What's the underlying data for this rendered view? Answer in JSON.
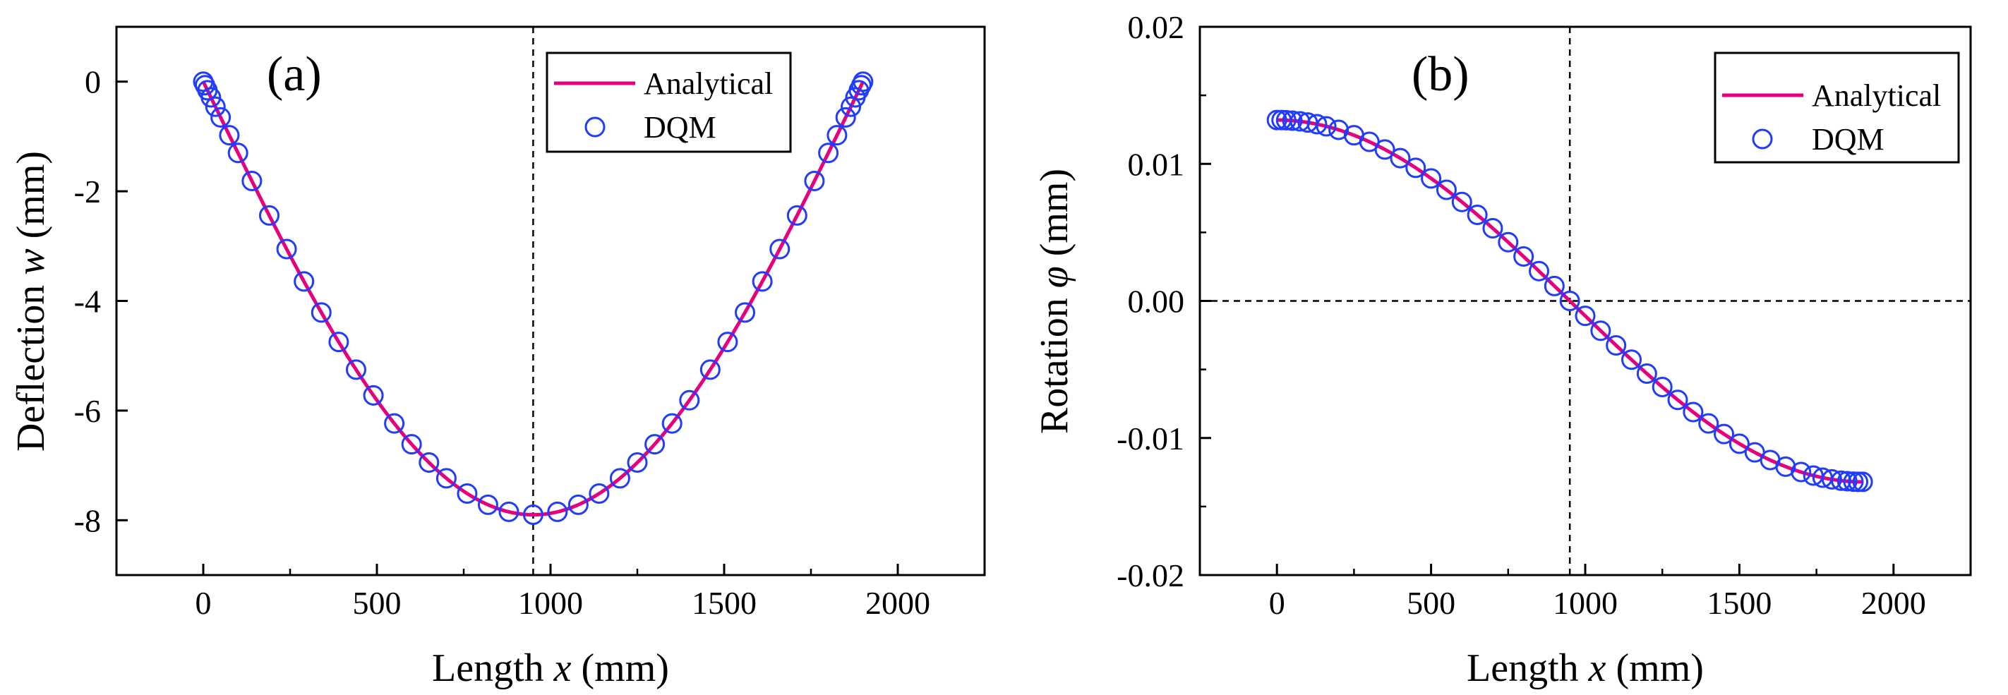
{
  "chart_data": [
    {
      "panel_label": "(a)",
      "type": "line+scatter",
      "xlabel_prefix": "Length ",
      "xlabel_var": "x",
      "xlabel_suffix": " (mm)",
      "ylabel_prefix": "Deflection ",
      "ylabel_var": "w",
      "ylabel_suffix": " (mm)",
      "xlim": [
        -250,
        2250
      ],
      "ylim": [
        -9,
        1
      ],
      "xticks": [
        0,
        500,
        1000,
        1500,
        2000
      ],
      "xtick_labels": [
        "0",
        "500",
        "1000",
        "1500",
        "2000"
      ],
      "yticks": [
        0,
        -2,
        -4,
        -6,
        -8
      ],
      "ytick_labels": [
        "0",
        "-2",
        "-4",
        "-6",
        "-8"
      ],
      "reference_lines": [
        {
          "orientation": "vertical",
          "value": 950
        }
      ],
      "legend_location": "top-right",
      "series": [
        {
          "name": "Analytical",
          "kind": "line",
          "color": "#e6007e",
          "function": "deflection",
          "L": 1900,
          "amplitude": -7.9
        },
        {
          "name": "DQM",
          "kind": "scatter",
          "marker": "open-circle",
          "color": "#1f3cff",
          "x": [
            0,
            5,
            12,
            22,
            35,
            50,
            75,
            100,
            140,
            190,
            240,
            290,
            340,
            390,
            440,
            490,
            550,
            600,
            650,
            700,
            760,
            820,
            880,
            950,
            1020,
            1080,
            1140,
            1200,
            1250,
            1300,
            1350,
            1400,
            1460,
            1510,
            1560,
            1610,
            1660,
            1710,
            1760,
            1800,
            1825,
            1850,
            1865,
            1878,
            1888,
            1895,
            1900
          ]
        }
      ]
    },
    {
      "panel_label": "(b)",
      "type": "line+scatter",
      "xlabel_prefix": "Length ",
      "xlabel_var": "x",
      "xlabel_suffix": " (mm)",
      "ylabel_prefix": "Rotation ",
      "ylabel_var": "φ",
      "ylabel_suffix": " (mm)",
      "xlim": [
        -250,
        2250
      ],
      "ylim": [
        -0.02,
        0.02
      ],
      "xticks": [
        0,
        500,
        1000,
        1500,
        2000
      ],
      "xtick_labels": [
        "0",
        "500",
        "1000",
        "1500",
        "2000"
      ],
      "yticks": [
        0.02,
        0.01,
        0,
        -0.01,
        -0.02
      ],
      "ytick_labels": [
        "0.02",
        "0.01",
        "0.00",
        "-0.01",
        "-0.02"
      ],
      "reference_lines": [
        {
          "orientation": "vertical",
          "value": 950
        },
        {
          "orientation": "horizontal",
          "value": 0
        }
      ],
      "legend_location": "top-right",
      "series": [
        {
          "name": "Analytical",
          "kind": "line",
          "color": "#e6007e",
          "function": "rotation",
          "L": 1900,
          "amplitude": 0.0132
        },
        {
          "name": "DQM",
          "kind": "scatter",
          "marker": "open-circle",
          "color": "#1f3cff",
          "x": [
            0,
            15,
            30,
            50,
            75,
            100,
            130,
            160,
            200,
            250,
            300,
            350,
            400,
            450,
            500,
            550,
            600,
            650,
            700,
            750,
            800,
            850,
            900,
            950,
            1000,
            1050,
            1100,
            1150,
            1200,
            1250,
            1300,
            1350,
            1400,
            1450,
            1500,
            1550,
            1600,
            1650,
            1700,
            1740,
            1770,
            1800,
            1830,
            1850,
            1870,
            1885,
            1900
          ]
        }
      ]
    }
  ]
}
